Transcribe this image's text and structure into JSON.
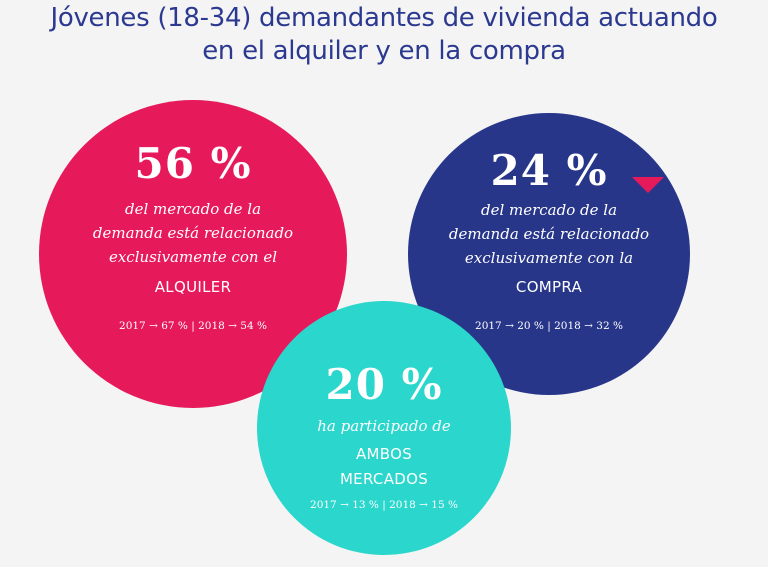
{
  "title": {
    "line1": "Jóvenes (18-34) demandantes de vivienda actuando",
    "line2": "en el alquiler y en la compra"
  },
  "circles": {
    "alquiler": {
      "percent": "56 %",
      "desc_lines": [
        "del mercado de la",
        "demanda está relacionado",
        "exclusivamente con el"
      ],
      "market": "ALQUILER",
      "history": "2017 → 67 % | 2018 → 54 %",
      "color": "#e6195b"
    },
    "compra": {
      "percent": "24 %",
      "desc_lines": [
        "del mercado de la",
        "demanda está relacionado",
        "exclusivamente con la"
      ],
      "market": "COMPRA",
      "history": "2017 → 20 % | 2018 → 32 %",
      "color": "#28368a",
      "trend_icon": "down-triangle-icon"
    },
    "ambos": {
      "percent": "20 %",
      "desc_lines": [
        "ha participado de"
      ],
      "market_lines": [
        "AMBOS",
        "MERCADOS"
      ],
      "history": "2017 → 13 % | 2018 → 15 %",
      "color": "#2bd6cc"
    }
  },
  "colors": {
    "title": "#2b3990",
    "background": "#f4f4f4",
    "accent": "#e6195b"
  }
}
